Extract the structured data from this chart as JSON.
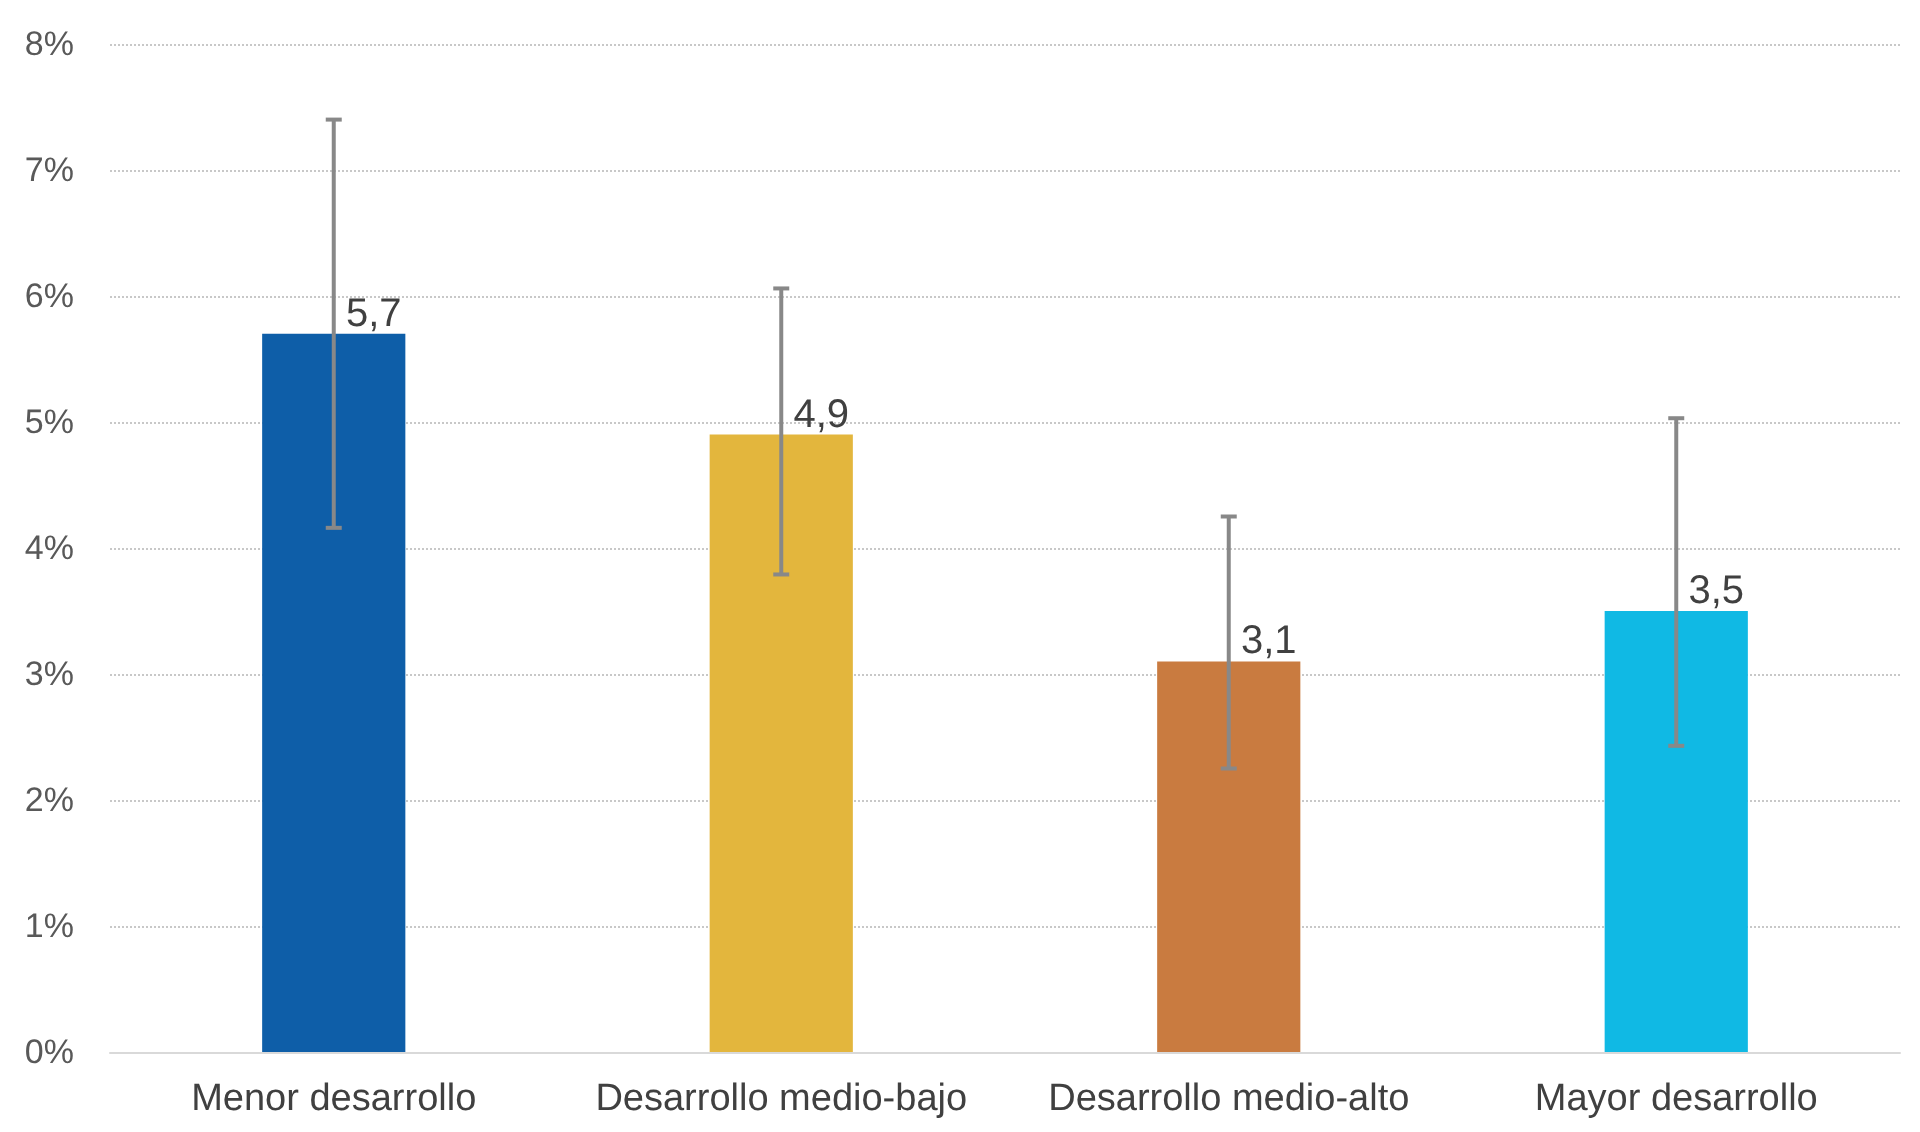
{
  "chart_data": {
    "type": "bar",
    "categories": [
      "Menor desarrollo",
      "Desarrollo medio-bajo",
      "Desarrollo medio-alto",
      "Mayor desarrollo"
    ],
    "values": [
      5.7,
      4.9,
      3.1,
      3.5
    ],
    "colors": [
      "#0e5ea8",
      "#e3b63d",
      "#c97b40",
      "#10b9e4"
    ],
    "errors": [
      [
        4.16,
        7.4
      ],
      [
        3.79,
        6.06
      ],
      [
        2.25,
        4.25
      ],
      [
        2.43,
        5.03
      ]
    ],
    "value_labels": [
      "5,7",
      "4,9",
      "3,1",
      "3,5"
    ],
    "ylim": [
      0,
      8
    ],
    "yticks": [
      {
        "value": 0,
        "label": "0%"
      },
      {
        "value": 1,
        "label": "1%"
      },
      {
        "value": 2,
        "label": "2%"
      },
      {
        "value": 3,
        "label": "3%"
      },
      {
        "value": 4,
        "label": "4%"
      },
      {
        "value": 5,
        "label": "5%"
      },
      {
        "value": 6,
        "label": "6%"
      },
      {
        "value": 7,
        "label": "7%"
      },
      {
        "value": 8,
        "label": "8%"
      }
    ],
    "grid": "y"
  }
}
